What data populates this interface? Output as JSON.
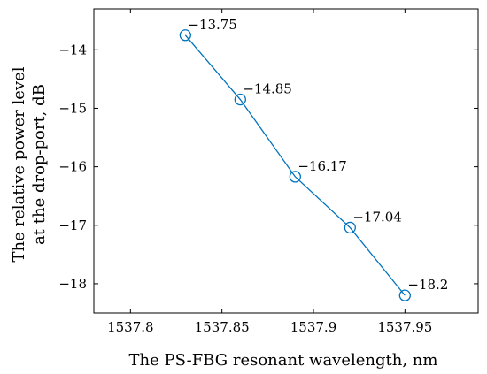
{
  "chart_data": {
    "type": "line",
    "title": "",
    "xlabel": "The PS-FBG resonant wavelength, nm",
    "ylabel_lines": [
      "The relative power level",
      "at the drop-port, dB"
    ],
    "xlim": [
      1537.78,
      1537.99
    ],
    "ylim": [
      -18.5,
      -13.3
    ],
    "xticks": [
      1537.8,
      1537.85,
      1537.9,
      1537.95
    ],
    "xtick_labels": [
      "1537.8",
      "1537.85",
      "1537.9",
      "1537.95"
    ],
    "yticks": [
      -18,
      -17,
      -16,
      -15,
      -14
    ],
    "ytick_labels": [
      "−18",
      "−17",
      "−16",
      "−15",
      "−14"
    ],
    "grid": false,
    "marker": "circle-open",
    "color": "#0072BD",
    "series": [
      {
        "x": [
          1537.83,
          1537.86,
          1537.89,
          1537.92,
          1537.95
        ],
        "y": [
          -13.75,
          -14.85,
          -16.17,
          -17.04,
          -18.2
        ],
        "point_labels": [
          "−13.75",
          "−14.85",
          "−16.17",
          "−17.04",
          "−18.2"
        ]
      }
    ]
  }
}
